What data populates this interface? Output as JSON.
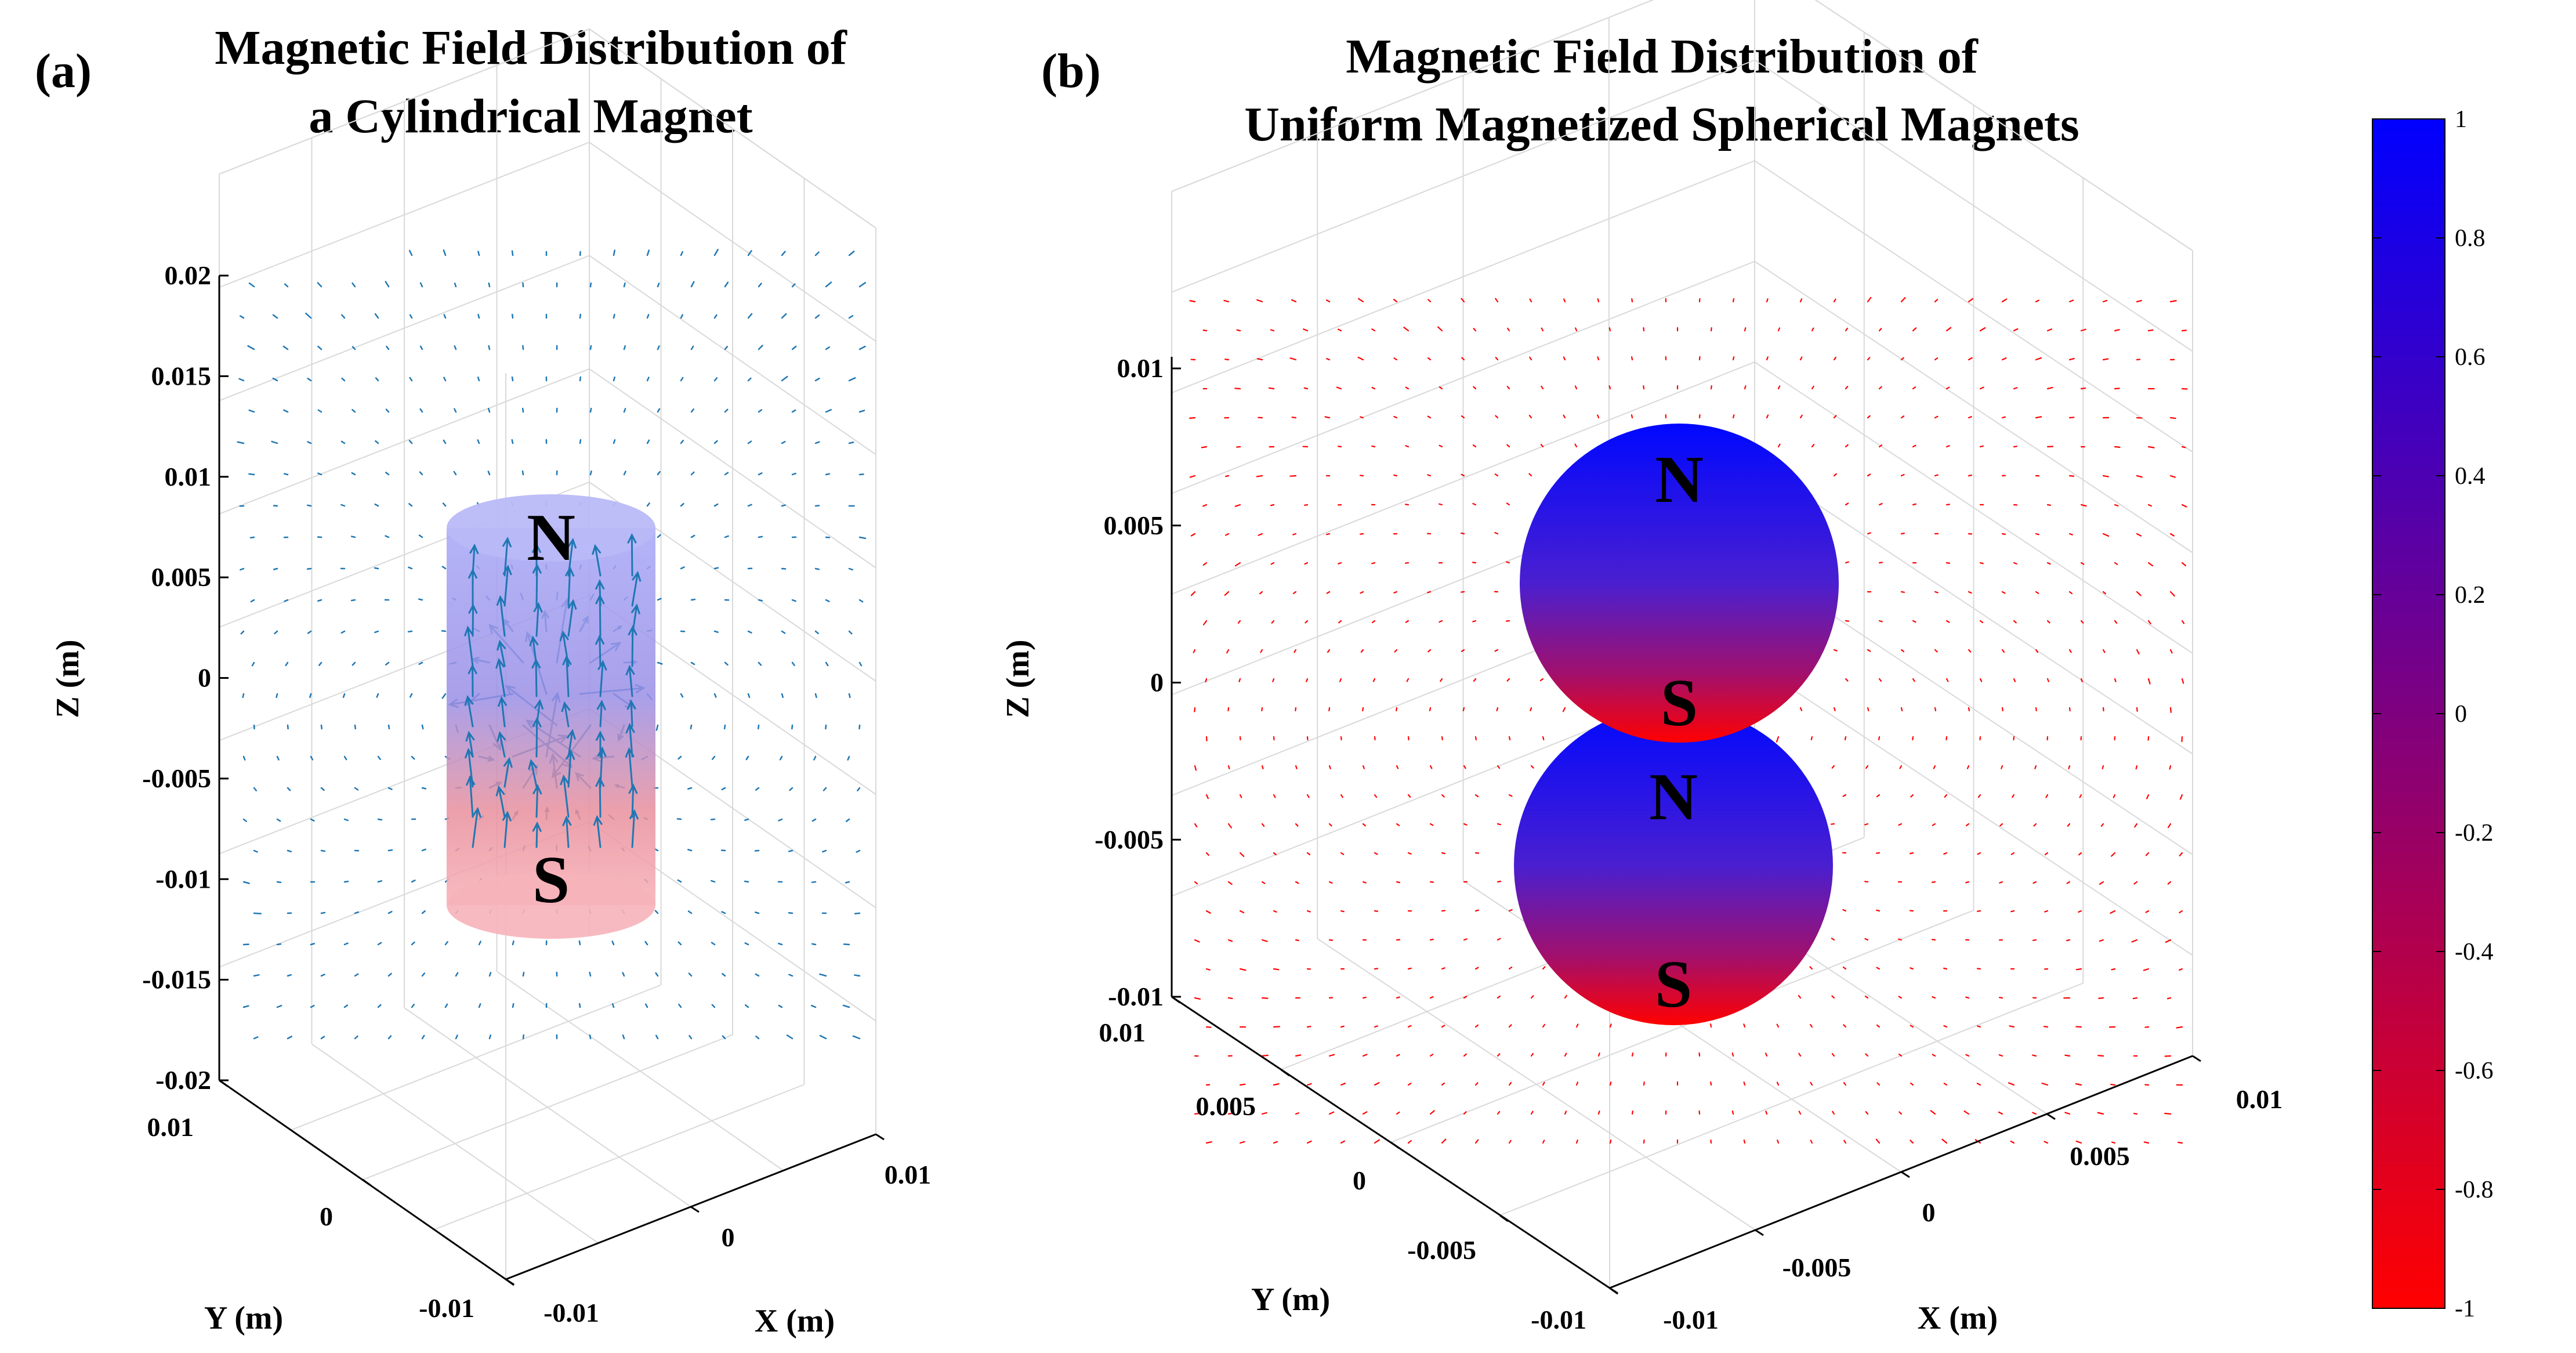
{
  "panel_a": {
    "label": "(a)",
    "title_line1": "Magnetic Field Distribution of",
    "title_line2": "a Cylindrical Magnet",
    "z_ticks": [
      "0.02",
      "0.015",
      "0.01",
      "0.005",
      "0",
      "-0.005",
      "-0.01",
      "-0.015",
      "-0.02"
    ],
    "x_ticks": [
      "-0.01",
      "0",
      "0.01"
    ],
    "y_ticks": [
      "0.01",
      "0",
      "-0.01"
    ],
    "zlabel": "Z (m)",
    "xlabel": "X (m)",
    "ylabel": "Y (m)",
    "poles": [
      "N",
      "S"
    ],
    "vector_color": "#1f77b4",
    "magnet_top_color": "#9f9ff2",
    "magnet_bottom_color": "#f2a6ac"
  },
  "panel_b": {
    "label": "(b)",
    "title_line1": "Magnetic Field Distribution of",
    "title_line2": "Uniform Magnetized Spherical Magnets",
    "z_ticks": [
      "0.01",
      "0.005",
      "0",
      "-0.005",
      "-0.01"
    ],
    "x_ticks": [
      "-0.01",
      "-0.005",
      "0",
      "0.005",
      "0.01"
    ],
    "y_ticks": [
      "0.01",
      "0.005",
      "0",
      "-0.005",
      "-0.01"
    ],
    "zlabel": "Z (m)",
    "xlabel": "X (m)",
    "ylabel": "Y (m)",
    "spheres": [
      {
        "top_pole": "N",
        "bottom_pole": "S"
      },
      {
        "top_pole": "N",
        "bottom_pole": "S"
      }
    ],
    "vector_color": "#ff0000"
  },
  "colorbar": {
    "ticks": [
      "1",
      "0.8",
      "0.6",
      "0.4",
      "0.2",
      "0",
      "-0.2",
      "-0.4",
      "-0.6",
      "-0.8",
      "-1"
    ],
    "top_color": "#0000ff",
    "bottom_color": "#ff0000"
  }
}
